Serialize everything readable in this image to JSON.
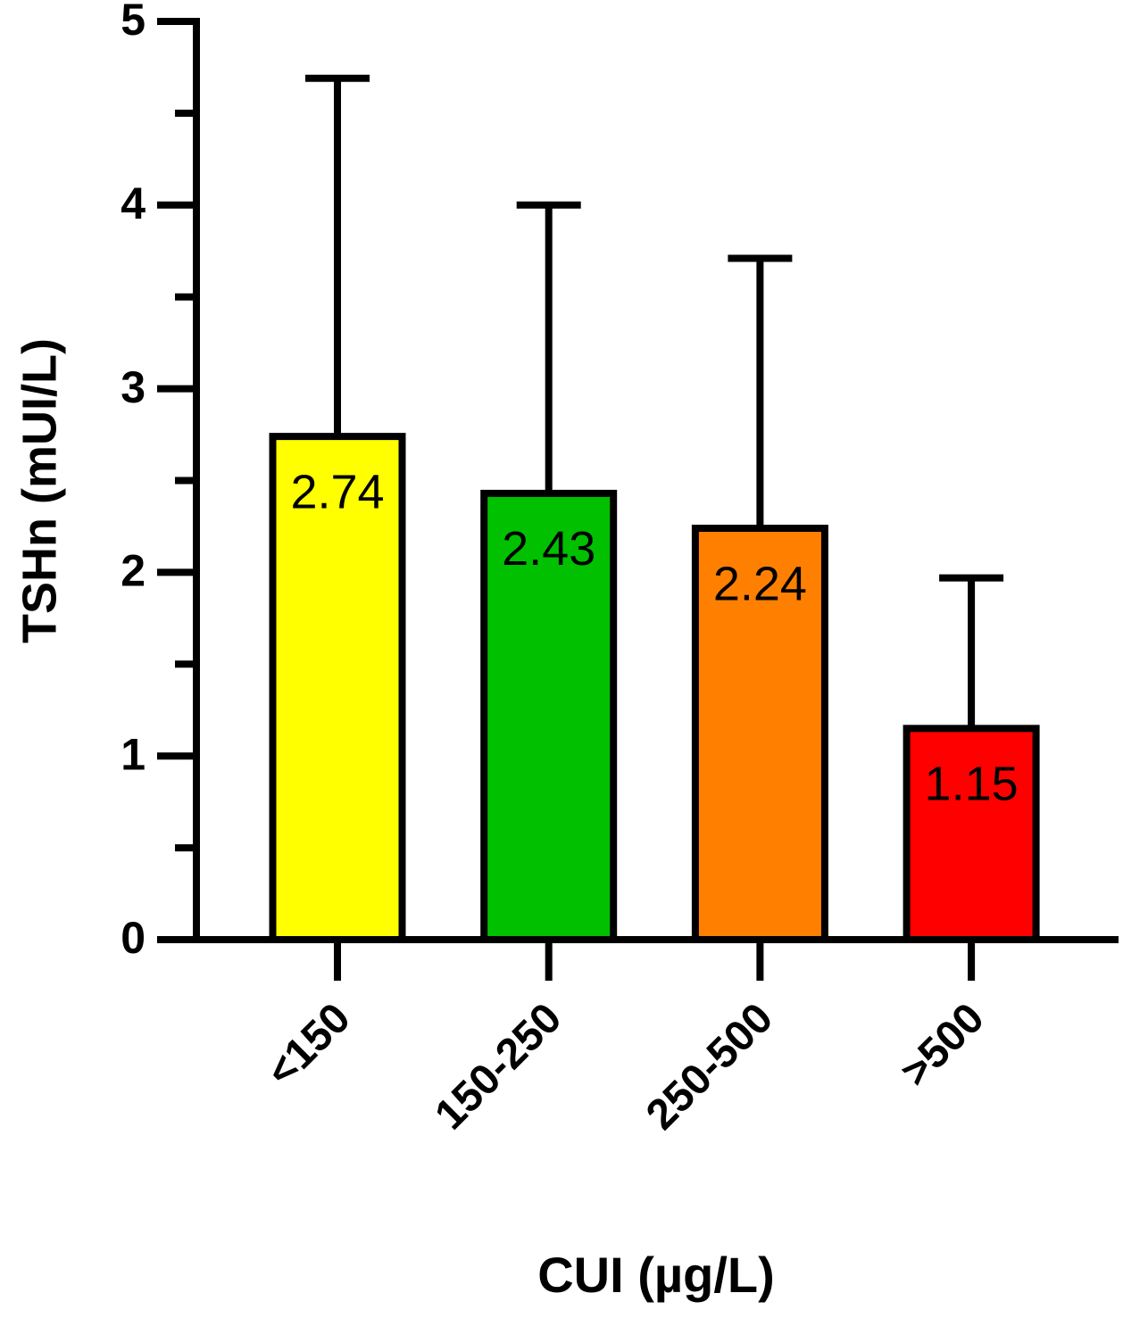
{
  "chart_data": {
    "type": "bar",
    "x_label": "CUI (µg/L)",
    "y_label": "TSHn (mUI/L)",
    "categories": [
      "<150",
      "150-250",
      "250-500",
      ">500"
    ],
    "values": [
      2.74,
      2.43,
      2.24,
      1.15
    ],
    "errors": [
      1.95,
      1.57,
      1.47,
      0.82
    ],
    "colors": [
      "#ffff00",
      "#00c000",
      "#ff8000",
      "#ff0000"
    ],
    "ylim": [
      0,
      5
    ],
    "yticks": [
      0,
      1,
      2,
      3,
      4,
      5
    ],
    "yminor_ticks": [
      0.5,
      1.5,
      2.5,
      3.5,
      4.5
    ],
    "grid": false
  }
}
